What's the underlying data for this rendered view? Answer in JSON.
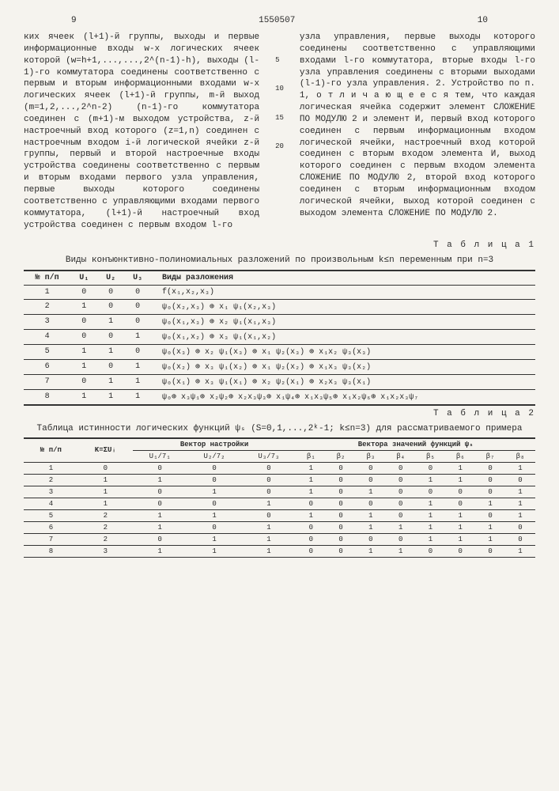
{
  "header": {
    "pageLeft": "9",
    "docNumber": "1550507",
    "pageRight": "10"
  },
  "lineNumbers": [
    "5",
    "10",
    "15",
    "20"
  ],
  "leftColumn": "ких ячеек (l+1)-й группы, выходы и первые информационные входы w-х логических ячеек которой (w=h+1,...,...,2^(n-1)-h), выходы (l-1)-го коммутатора соединены соответственно с первым и вторым информационными входами w-х логических ячеек (l+1)-й группы, m-й выход (m=1,2,...,2^n-2) (n-1)-го коммутатора соединен с (m+1)-м выходом устройства, z-й настроечный вход которого (z=1,n) соединен с настроечным входом i-й логической ячейки z-й группы, первый и второй настроечные входы устройства соединены соответственно с первым и вторым входами первого узла управления, первые выходы которого соединены соответственно с управляющими входами первого коммутатора, (l+1)-й настроечный вход устройства соединен с первым входом l-го",
  "rightColumn": "узла управления, первые выходы которого соединены соответственно с управляющими входами l-го коммутатора, вторые входы l-го узла управления соединены с вторыми выходами (l-1)-го узла управления.\n2. Устройство по п. 1, о т л и ч а ю щ е е с я тем, что каждая логическая ячейка содержит элемент СЛОЖЕНИЕ ПО МОДУЛЮ 2 и элемент И, первый вход которого соединен с первым информационным входом логической ячейки, настроечный вход которой соединен с вторым входом элемента И, выход которого соединен с первым входом элемента СЛОЖЕНИЕ ПО МОДУЛЮ 2, второй вход которого соединен с вторым информационным входом логической ячейки, выход которой соединен с выходом элемента СЛОЖЕНИЕ ПО МОДУЛЮ 2.",
  "table1": {
    "label": "Т а б л и ц а 1",
    "caption": "Виды конъюнктивно-полиномиальных разложений по произвольным k≤n переменным при n=3",
    "headers": [
      "№ п/п",
      "U₁",
      "U₂",
      "U₃",
      "Виды разложения"
    ],
    "rows": [
      [
        "1",
        "0",
        "0",
        "0",
        "f(x₁,x₂,x₃)"
      ],
      [
        "2",
        "1",
        "0",
        "0",
        "ψ₀(x₂,x₃) ⊕ x₁ ψ₁(x₂,x₃)"
      ],
      [
        "3",
        "0",
        "1",
        "0",
        "ψ₀(x₁,x₃) ⊕ x₂ ψ₁(x₁,x₃)"
      ],
      [
        "4",
        "0",
        "0",
        "1",
        "ψ₀(x₁,x₂) ⊕ x₃ ψ₁(x₁,x₂)"
      ],
      [
        "5",
        "1",
        "1",
        "0",
        "ψ₀(x₃) ⊕ x₂ ψ₁(x₃) ⊕ x₁ ψ₂(x₃) ⊕ x₁x₂ ψ₃(x₃)"
      ],
      [
        "6",
        "1",
        "0",
        "1",
        "ψ₀(x₂) ⊕ x₃ ψ₁(x₂) ⊕ x₁ ψ₂(x₂) ⊕ x₁x₃ ψ₃(x₂)"
      ],
      [
        "7",
        "0",
        "1",
        "1",
        "ψ₀(x₁) ⊕ x₃ ψ₁(x₁) ⊕ x₂ ψ₂(x₁) ⊕ x₂x₃ ψ₃(x₁)"
      ],
      [
        "8",
        "1",
        "1",
        "1",
        "ψ₀⊕ x₃ψ₁⊕ x₂ψ₂⊕ x₂x₃ψ₃⊕ x₁ψ₄⊕ x₁x₃ψ₅⊕ x₁x₂ψ₆⊕ x₁x₂x₃ψ₇"
      ]
    ]
  },
  "table2": {
    "label": "Т а б л и ц а 2",
    "caption": "Таблица истинности логических функций ψₛ (S=0,1,...,2ᵏ-1; k≤n=3) для рассматриваемого примера",
    "headers1": [
      "№ п/п",
      "K=ΣUᵢ",
      "Вектор настройки",
      "Вектора значений функций ψₛ"
    ],
    "headers2": [
      "U₁/7₁",
      "U₂/7₂",
      "U₃/7₃",
      "β₁",
      "β₂",
      "β₃",
      "β₄",
      "β₅",
      "β₆",
      "β₇",
      "β₈"
    ],
    "rows": [
      [
        "1",
        "0",
        "0",
        "0",
        "0",
        "1",
        "0",
        "0",
        "0",
        "0",
        "1",
        "0",
        "1"
      ],
      [
        "2",
        "1",
        "1",
        "0",
        "0",
        "1",
        "0",
        "0",
        "0",
        "1",
        "1",
        "0",
        "0"
      ],
      [
        "3",
        "1",
        "0",
        "1",
        "0",
        "1",
        "0",
        "1",
        "0",
        "0",
        "0",
        "0",
        "1"
      ],
      [
        "4",
        "1",
        "0",
        "0",
        "1",
        "0",
        "0",
        "0",
        "0",
        "1",
        "0",
        "1",
        "1"
      ],
      [
        "5",
        "2",
        "1",
        "1",
        "0",
        "1",
        "0",
        "1",
        "0",
        "1",
        "1",
        "0",
        "1"
      ],
      [
        "6",
        "2",
        "1",
        "0",
        "1",
        "0",
        "0",
        "1",
        "1",
        "1",
        "1",
        "1",
        "0"
      ],
      [
        "7",
        "2",
        "0",
        "1",
        "1",
        "0",
        "0",
        "0",
        "0",
        "1",
        "1",
        "1",
        "0"
      ],
      [
        "8",
        "3",
        "1",
        "1",
        "1",
        "0",
        "0",
        "1",
        "1",
        "0",
        "0",
        "0",
        "1"
      ]
    ]
  }
}
